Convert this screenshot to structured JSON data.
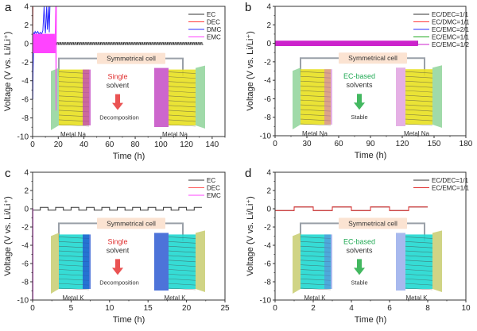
{
  "chart_data": [
    {
      "panel": "a",
      "type": "line",
      "xlabel": "Time (h)",
      "ylabel": "Voltage (V vs. Li/Li⁺)",
      "xlim": [
        0,
        150
      ],
      "ylim": [
        -10,
        4
      ],
      "xticks": [
        0,
        20,
        40,
        60,
        80,
        100,
        120,
        140
      ],
      "yticks": [
        4,
        2,
        0,
        -2,
        -4,
        -6,
        -8,
        -10
      ],
      "legend_position": "top-right",
      "series": [
        {
          "name": "EC",
          "color": "#333333",
          "kind": "square",
          "start": 0,
          "end": 133,
          "period": 2,
          "amp": 0.1,
          "offset": 0
        },
        {
          "name": "DEC",
          "color": "#ff3b3b",
          "kind": "points",
          "x": [
            0,
            0.3,
            0.6,
            1.0,
            1.2
          ],
          "y": [
            0,
            4,
            4,
            4,
            4
          ]
        },
        {
          "name": "DMC",
          "color": "#2b2bff",
          "kind": "points",
          "x": [
            0,
            0.2,
            0.4,
            0.7,
            1,
            1.5,
            2,
            3,
            4,
            5,
            6,
            7,
            8,
            9,
            9.5,
            10,
            11,
            11.5,
            12,
            12.5,
            13,
            13.5
          ],
          "y": [
            -1,
            -6,
            -3,
            -1,
            1.2,
            1.0,
            1.3,
            1.1,
            1.3,
            1.0,
            1.2,
            1.0,
            1.4,
            4,
            2,
            1.1,
            4,
            1.5,
            2.6,
            4,
            1.2,
            4
          ]
        },
        {
          "name": "EMC",
          "color": "#ff44ff",
          "kind": "square",
          "start": 0,
          "end": 17.5,
          "period": 1,
          "amp": 1.0,
          "offset": 0,
          "tail": {
            "x": [
              17.5,
              18,
              18.3,
              18.6
            ],
            "y": [
              0,
              4,
              -7.2,
              4
            ]
          }
        }
      ],
      "inset": {
        "title": "Symmetrical cell",
        "top_label": "Single",
        "top_label_color": "#e03030",
        "mid_label": "solvent",
        "arrow_color": "#e84040",
        "bottom_label": "Decomposition",
        "left_caption": "Metal  Na",
        "right_caption": "Metal Na",
        "metal_color": "#e8e020",
        "plate_color": "#8fd49a",
        "sei_color": "#c040c0"
      }
    },
    {
      "panel": "b",
      "type": "line",
      "xlabel": "Time (h)",
      "ylabel": "Voltage (V vs. Li/Li⁺)",
      "xlim": [
        0,
        180
      ],
      "ylim": [
        -10,
        4
      ],
      "xticks": [
        0,
        30,
        60,
        90,
        120,
        150,
        180
      ],
      "yticks": [
        4,
        2,
        0,
        -2,
        -4,
        -6,
        -8,
        -10
      ],
      "legend_position": "top-right",
      "series": [
        {
          "name": "EC/DEC=1/1",
          "color": "#333333",
          "kind": "square",
          "start": 0,
          "end": 135,
          "period": 1,
          "amp": 0.15,
          "offset": 0
        },
        {
          "name": "EC/DMC=1/1",
          "color": "#ff3b3b",
          "kind": "square",
          "start": 0,
          "end": 135,
          "period": 1,
          "amp": 0.15,
          "offset": 0
        },
        {
          "name": "EC/EMC=2/1",
          "color": "#2b2bff",
          "kind": "square",
          "start": 0,
          "end": 135,
          "period": 1,
          "amp": 0.18,
          "offset": 0
        },
        {
          "name": "EC/EMC=1/1",
          "color": "#22aa22",
          "kind": "square",
          "start": 0,
          "end": 135,
          "period": 1,
          "amp": 0.18,
          "offset": 0
        },
        {
          "name": "EC/EMC=1/2",
          "color": "#cc22cc",
          "kind": "square",
          "start": 0,
          "end": 135,
          "period": 1,
          "amp": 0.25,
          "offset": 0
        }
      ],
      "inset": {
        "title": "Symmetrical cell",
        "top_label": "EC-based",
        "top_label_color": "#22aa55",
        "mid_label": "solvents",
        "arrow_color": "#2fb04f",
        "bottom_label": "Stable",
        "left_caption": "Metal  Na",
        "right_caption": "Metal Na",
        "metal_color": "#e8e020",
        "plate_color": "#8fd49a",
        "sei_color": "#d070d0"
      }
    },
    {
      "panel": "c",
      "type": "line",
      "xlabel": "Time (h)",
      "ylabel": "Voltage (V vs. Li/Li⁺)",
      "xlim": [
        0,
        25
      ],
      "ylim": [
        -10,
        4
      ],
      "xticks": [
        0,
        5,
        10,
        15,
        20,
        25
      ],
      "yticks": [
        4,
        2,
        0,
        -2,
        -4,
        -6,
        -8,
        -10
      ],
      "legend_position": "top-right",
      "series": [
        {
          "name": "EC",
          "color": "#333333",
          "kind": "square",
          "start": 0,
          "end": 22,
          "period": 2,
          "amp": 0.15,
          "offset": 0
        },
        {
          "name": "DEC",
          "color": "#ff5555",
          "kind": "points",
          "x": [
            0,
            0.05
          ],
          "y": [
            0,
            -0.2
          ]
        },
        {
          "name": "EMC",
          "color": "#ff44ff",
          "kind": "points",
          "x": [
            0,
            0.05,
            0.05
          ],
          "y": [
            0,
            0,
            -10
          ]
        }
      ],
      "inset": {
        "title": "Symmetrical cell",
        "top_label": "Single",
        "top_label_color": "#e03030",
        "mid_label": "solvent",
        "arrow_color": "#e84040",
        "bottom_label": "Decomposition",
        "left_caption": "Metal  K",
        "right_caption": "Metal K",
        "metal_color": "#20d8d0",
        "plate_color": "#c8cc70",
        "sei_color": "#2050d0"
      }
    },
    {
      "panel": "d",
      "type": "line",
      "xlabel": "Time (h)",
      "ylabel": "Voltage (V vs. Li/Li⁺)",
      "xlim": [
        0,
        10
      ],
      "ylim": [
        -10,
        4
      ],
      "xticks": [
        0,
        2,
        4,
        6,
        8,
        10
      ],
      "yticks": [
        4,
        2,
        0,
        -2,
        -4,
        -6,
        -8,
        -10
      ],
      "legend_position": "top-right",
      "series": [
        {
          "name": "EC/DEC=1/1",
          "color": "#333333",
          "kind": "square",
          "start": 0,
          "end": 8,
          "period": 2,
          "amp": 0.2,
          "offset": 0
        },
        {
          "name": "EC/EMC=1/1",
          "color": "#e02828",
          "kind": "square",
          "start": 0,
          "end": 8,
          "period": 2,
          "amp": 0.2,
          "offset": 0
        }
      ],
      "inset": {
        "title": "Symmetrical cell",
        "top_label": "EC-based",
        "top_label_color": "#22aa55",
        "mid_label": "solvents",
        "arrow_color": "#2fb04f",
        "bottom_label": "Stable",
        "left_caption": "Metal  K",
        "right_caption": "Metal K",
        "metal_color": "#20d8d0",
        "plate_color": "#c8cc70",
        "sei_color": "#6080e0"
      }
    }
  ]
}
